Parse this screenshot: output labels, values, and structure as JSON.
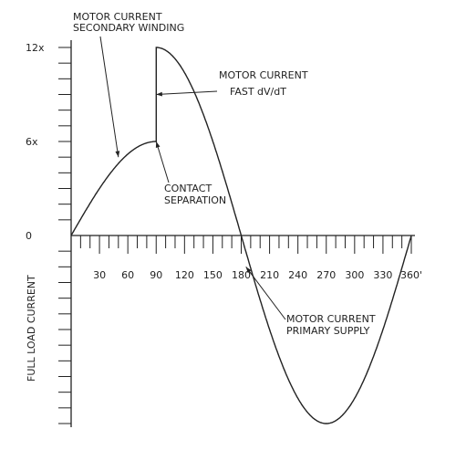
{
  "chart_data": {
    "type": "line",
    "title": "",
    "xlabel": "",
    "ylabel": "FULL LOAD CURRENT",
    "x_tick_labels": [
      "30",
      "60",
      "90",
      "120",
      "150",
      "180",
      "210",
      "240",
      "270",
      "300",
      "330",
      "360'"
    ],
    "x_tick_values": [
      30,
      60,
      90,
      120,
      150,
      180,
      210,
      240,
      270,
      300,
      330,
      360
    ],
    "y_tick_labels": [
      "12x",
      "6x",
      "0"
    ],
    "y_tick_values": [
      12,
      6,
      0
    ],
    "xlim": [
      0,
      360
    ],
    "ylim": [
      -12,
      12
    ],
    "grid": false,
    "series": [
      {
        "name": "",
        "segments": [
          {
            "function": "sine",
            "x_start": 0,
            "x_end": 90,
            "amplitude": 6
          },
          {
            "function": "step",
            "x": 90,
            "from": 6,
            "to": 12
          },
          {
            "function": "sine",
            "x_start": 90,
            "x_end": 360,
            "amplitude": 12
          }
        ],
        "peak_positive": 12,
        "peak_negative": -12
      }
    ],
    "annotations": [
      {
        "text": [
          "MOTOR CURRENT",
          "SECONDARY WINDING"
        ],
        "points_to": {
          "x": 50,
          "y": 5
        }
      },
      {
        "text": [
          "MOTOR CURRENT",
          "FAST dV/dT"
        ],
        "points_to": {
          "x": 90,
          "y": 9
        }
      },
      {
        "text": [
          "CONTACT",
          "SEPARATION"
        ],
        "points_to": {
          "x": 90,
          "y": 6
        }
      },
      {
        "text": [
          "MOTOR CURRENT",
          "PRIMARY SUPPLY"
        ],
        "points_to": {
          "x": 185,
          "y": -2
        }
      }
    ]
  },
  "colors": {
    "line": "#222222",
    "background": "#ffffff"
  }
}
